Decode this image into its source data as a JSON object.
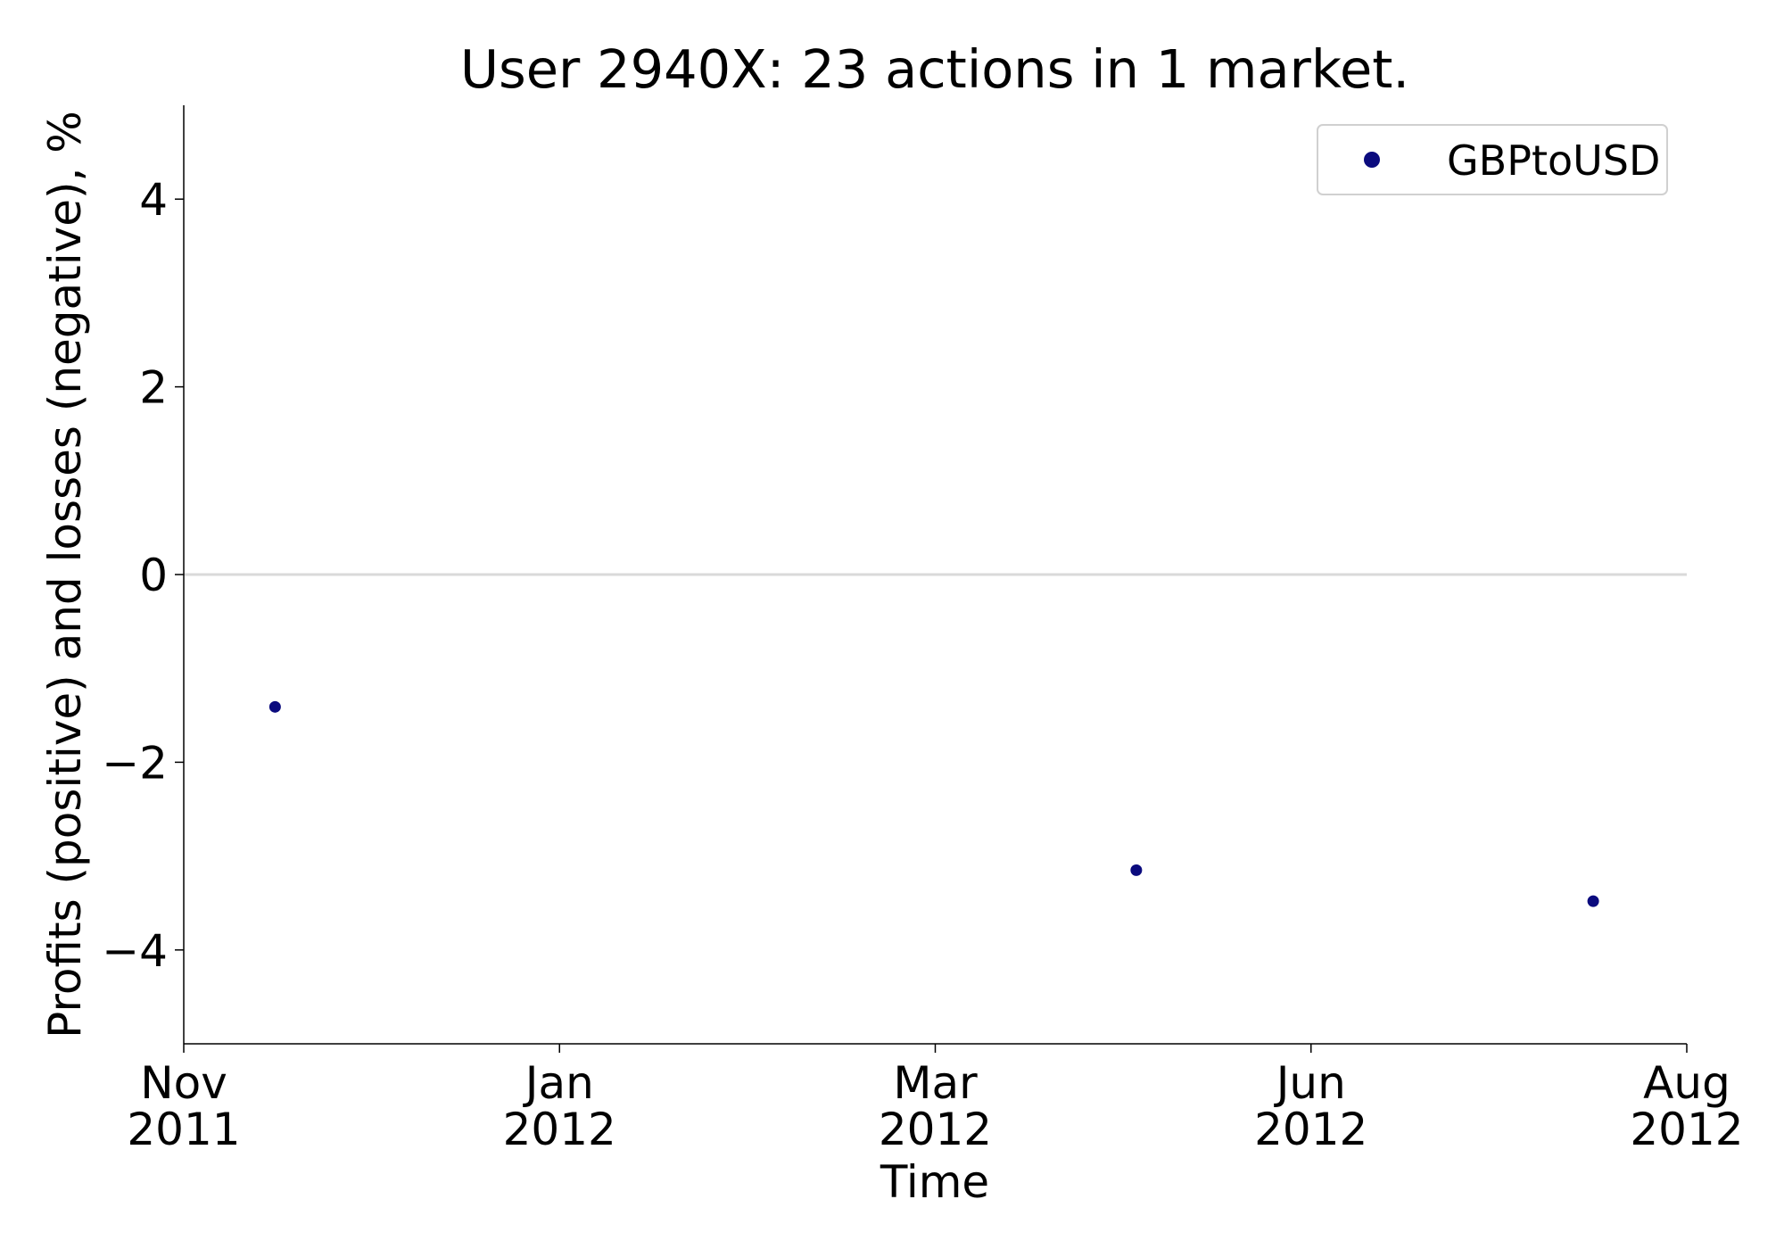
{
  "chart_data": {
    "type": "scatter",
    "title": "User 2940X: 23 actions in 1 market.",
    "xlabel": "Time",
    "ylabel": "Profits (positive) and losses (negative), %",
    "series": [
      {
        "name": "GBPtoUSD",
        "color": "#0b0b7e",
        "x": [
          0.243,
          2.535,
          3.751
        ],
        "values": [
          -1.41,
          -3.15,
          -3.48
        ]
      }
    ],
    "xlim": [
      0,
      4
    ],
    "xticks": [
      {
        "value": 0,
        "label": "Nov\n2011"
      },
      {
        "value": 1,
        "label": "Jan\n2012"
      },
      {
        "value": 2,
        "label": "Mar\n2012"
      },
      {
        "value": 3,
        "label": "Jun\n2012"
      },
      {
        "value": 4,
        "label": "Aug\n2012"
      }
    ],
    "ylim": [
      -5,
      5
    ],
    "yticks": [
      {
        "value": -4,
        "label": "−4"
      },
      {
        "value": -2,
        "label": "−2"
      },
      0,
      2,
      4
    ],
    "zero_line": true,
    "legend": "upper right"
  }
}
